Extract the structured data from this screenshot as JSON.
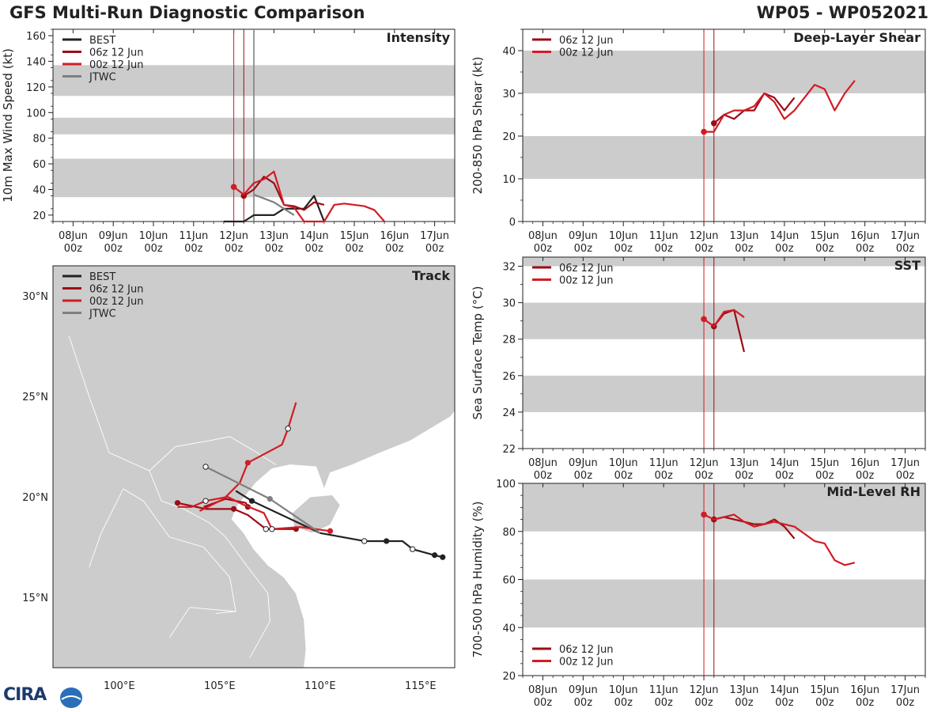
{
  "header": {
    "title": "GFS Multi-Run Diagnostic Comparison",
    "storm_id": "WP05 - WP052021"
  },
  "logo": {
    "text": "CIRA"
  },
  "colors": {
    "best": "#222222",
    "run06": "#9b0d17",
    "run00": "#d21c25",
    "jtwc": "#808080",
    "band": "#cccccc",
    "vline00": "#d21c25",
    "vline06": "#9b0d17",
    "vlineJ": "#808080"
  },
  "time_axis": {
    "dates": [
      "08Jun",
      "09Jun",
      "10Jun",
      "11Jun",
      "12Jun",
      "13Jun",
      "14Jun",
      "15Jun",
      "16Jun",
      "17Jun"
    ],
    "hour_label": "00z",
    "markers": [
      4,
      4.25,
      4.5
    ]
  },
  "chart_data": [
    {
      "id": "intensity",
      "type": "line",
      "title": "Intensity",
      "ylabel": "10m Max Wind Speed (kt)",
      "ylim": [
        15,
        165
      ],
      "yticks": [
        20,
        40,
        60,
        80,
        100,
        120,
        140,
        160
      ],
      "minor": 10,
      "bands": [
        [
          34,
          64
        ],
        [
          83,
          96
        ],
        [
          113,
          137
        ]
      ],
      "markers": [
        4,
        4.25,
        4.5
      ],
      "legend": [
        "BEST",
        "06z 12 Jun",
        "00z 12 Jun",
        "JTWC"
      ],
      "series": [
        {
          "name": "BEST",
          "key": "best",
          "x": [
            3.75,
            4,
            4.25,
            4.5,
            4.75,
            5,
            5.25,
            5.5,
            5.75,
            6,
            6.25
          ],
          "y": [
            15,
            15,
            15,
            20,
            20,
            20,
            25,
            25,
            25,
            35,
            15
          ],
          "dots": []
        },
        {
          "name": "06z 12 Jun",
          "key": "run06",
          "x": [
            4.25,
            4.5,
            4.75,
            5,
            5.25,
            5.5,
            5.75,
            6,
            6.25
          ],
          "y": [
            35,
            40,
            50,
            45,
            28,
            27,
            24,
            30,
            28
          ],
          "dots": [
            0
          ]
        },
        {
          "name": "00z 12 Jun",
          "key": "run00",
          "x": [
            4,
            4.25,
            4.5,
            4.75,
            5,
            5.25,
            5.5,
            5.75,
            6,
            6.25,
            6.5,
            6.75,
            7,
            7.25,
            7.5,
            7.75
          ],
          "y": [
            42,
            36,
            45,
            48,
            54,
            28,
            26,
            15,
            15,
            15,
            28,
            29,
            28,
            27,
            24,
            15
          ],
          "dots": [
            0
          ]
        },
        {
          "name": "JTWC",
          "key": "jtwc",
          "x": [
            4.5,
            5,
            5.5
          ],
          "y": [
            36,
            30,
            20
          ],
          "dots": []
        }
      ]
    },
    {
      "id": "shear",
      "type": "line",
      "title": "Deep-Layer Shear",
      "ylabel": "200-850 hPa Shear (kt)",
      "ylim": [
        0,
        45
      ],
      "yticks": [
        0,
        10,
        20,
        30,
        40
      ],
      "minor": 5,
      "bands": [
        [
          10,
          20
        ],
        [
          30,
          40
        ]
      ],
      "markers": [
        4,
        4.25
      ],
      "legend": [
        "06z 12 Jun",
        "00z 12 Jun"
      ],
      "series": [
        {
          "name": "06z 12 Jun",
          "key": "run06",
          "x": [
            4.25,
            4.5,
            4.75,
            5,
            5.25,
            5.5,
            5.75,
            6,
            6.25
          ],
          "y": [
            23,
            25,
            24,
            26,
            26,
            30,
            29,
            26,
            29
          ],
          "dots": [
            0
          ]
        },
        {
          "name": "00z 12 Jun",
          "key": "run00",
          "x": [
            4,
            4.25,
            4.5,
            4.75,
            5,
            5.25,
            5.5,
            5.75,
            6,
            6.25,
            6.5,
            6.75,
            7,
            7.25,
            7.5,
            7.75
          ],
          "y": [
            21,
            21,
            25,
            26,
            26,
            27,
            30,
            28,
            24,
            26,
            29,
            32,
            31,
            26,
            30,
            33
          ],
          "dots": [
            0
          ]
        }
      ]
    },
    {
      "id": "sst",
      "type": "line",
      "title": "SST",
      "ylabel": "Sea Surface Temp (°C)",
      "ylim": [
        22,
        32.5
      ],
      "yticks": [
        22,
        24,
        26,
        28,
        30,
        32
      ],
      "minor": 1,
      "bands": [
        [
          24,
          26
        ],
        [
          28,
          30
        ],
        [
          32,
          32.5
        ]
      ],
      "markers": [
        4,
        4.25
      ],
      "legend": [
        "06z 12 Jun",
        "00z 12 Jun"
      ],
      "series": [
        {
          "name": "06z 12 Jun",
          "key": "run06",
          "x": [
            4.25,
            4.5,
            4.75,
            5
          ],
          "y": [
            28.7,
            29.4,
            29.6,
            27.3
          ],
          "dots": [
            0
          ]
        },
        {
          "name": "00z 12 Jun",
          "key": "run00",
          "x": [
            4,
            4.25,
            4.5,
            4.75,
            5
          ],
          "y": [
            29.1,
            28.7,
            29.5,
            29.6,
            29.2
          ],
          "dots": [
            0
          ]
        }
      ]
    },
    {
      "id": "rh",
      "type": "line",
      "title": "Mid-Level RH",
      "ylabel": "700-500 hPa Humidity (%)",
      "ylim": [
        20,
        100
      ],
      "yticks": [
        20,
        40,
        60,
        80,
        100
      ],
      "minor": 5,
      "bands": [
        [
          40,
          60
        ],
        [
          80,
          100
        ]
      ],
      "markers": [
        4,
        4.25
      ],
      "legend": [
        "06z 12 Jun",
        "00z 12 Jun"
      ],
      "series": [
        {
          "name": "06z 12 Jun",
          "key": "run06",
          "x": [
            4.25,
            4.5,
            4.75,
            5,
            5.25,
            5.5,
            5.75,
            6,
            6.25
          ],
          "y": [
            85,
            86,
            85,
            84,
            83,
            83,
            85,
            82,
            77
          ],
          "dots": [
            0
          ]
        },
        {
          "name": "00z 12 Jun",
          "key": "run00",
          "x": [
            4,
            4.25,
            4.5,
            4.75,
            5,
            5.25,
            5.5,
            5.75,
            6,
            6.25,
            6.5,
            6.75,
            7,
            7.25,
            7.5,
            7.75
          ],
          "y": [
            87,
            85,
            86,
            87,
            84,
            82,
            83,
            84,
            83,
            82,
            79,
            76,
            75,
            68,
            66,
            67
          ],
          "dots": [
            0
          ]
        }
      ]
    },
    {
      "id": "track",
      "type": "scatter",
      "title": "Track",
      "xlim": [
        96.7,
        116.7
      ],
      "ylim": [
        11.5,
        31.5
      ],
      "xticks": [
        {
          "v": 100,
          "label": "100°E"
        },
        {
          "v": 105,
          "label": "105°E"
        },
        {
          "v": 110,
          "label": "110°E"
        },
        {
          "v": 115,
          "label": "115°E"
        }
      ],
      "yticks": [
        {
          "v": 15,
          "label": "15°N"
        },
        {
          "v": 20,
          "label": "20°N"
        },
        {
          "v": 25,
          "label": "25°N"
        },
        {
          "v": 30,
          "label": "30°N"
        }
      ],
      "legend": [
        "BEST",
        "06z 12 Jun",
        "00z 12 Jun",
        "JTWC"
      ],
      "series": [
        {
          "name": "BEST",
          "key": "best",
          "lon": [
            116.1,
            115.7,
            114.6,
            114.1,
            113.3,
            112.2,
            110.0,
            106.6,
            105.8
          ],
          "lat": [
            17.0,
            17.1,
            17.4,
            17.8,
            17.8,
            17.8,
            18.2,
            19.8,
            20.3
          ],
          "filled": [
            0,
            1,
            4,
            7
          ],
          "open": [
            2,
            5
          ]
        },
        {
          "name": "06z 12 Jun",
          "key": "run06",
          "lon": [
            108.8,
            107.3,
            106.4,
            105.7,
            104.3,
            102.9
          ],
          "lat": [
            18.4,
            18.4,
            19.1,
            19.4,
            19.4,
            19.7
          ],
          "filled": [
            0,
            3,
            5
          ],
          "open": [
            1
          ]
        },
        {
          "name": "06z 12 Jun",
          "key": "run06",
          "lon": [
            106.4,
            106.3,
            105.3,
            104.2
          ],
          "lat": [
            19.5,
            19.7,
            19.9,
            19.5
          ],
          "filled": [
            0
          ],
          "open": []
        },
        {
          "name": "00z 12 Jun",
          "key": "run00",
          "lon": [
            110.5,
            109.0,
            107.6,
            107.2,
            106.2,
            105.4,
            104.3,
            103.6,
            102.9
          ],
          "lat": [
            18.3,
            18.5,
            18.4,
            19.2,
            19.6,
            20.0,
            19.8,
            19.5,
            19.5
          ],
          "filled": [
            0
          ],
          "open": [
            2,
            6
          ]
        },
        {
          "name": "00z 12 Jun",
          "key": "run00",
          "lon": [
            104.0,
            105.2,
            106.0,
            106.4,
            108.1,
            108.4,
            108.8
          ],
          "lat": [
            19.3,
            19.9,
            20.7,
            21.7,
            22.6,
            23.4,
            24.7
          ],
          "filled": [
            3
          ],
          "open": [
            5
          ]
        },
        {
          "name": "JTWC",
          "key": "jtwc",
          "lon": [
            110.0,
            107.5,
            105.7,
            104.3
          ],
          "lat": [
            18.2,
            19.9,
            20.8,
            21.5
          ],
          "filled": [
            1
          ],
          "open": [
            3
          ]
        }
      ]
    }
  ]
}
